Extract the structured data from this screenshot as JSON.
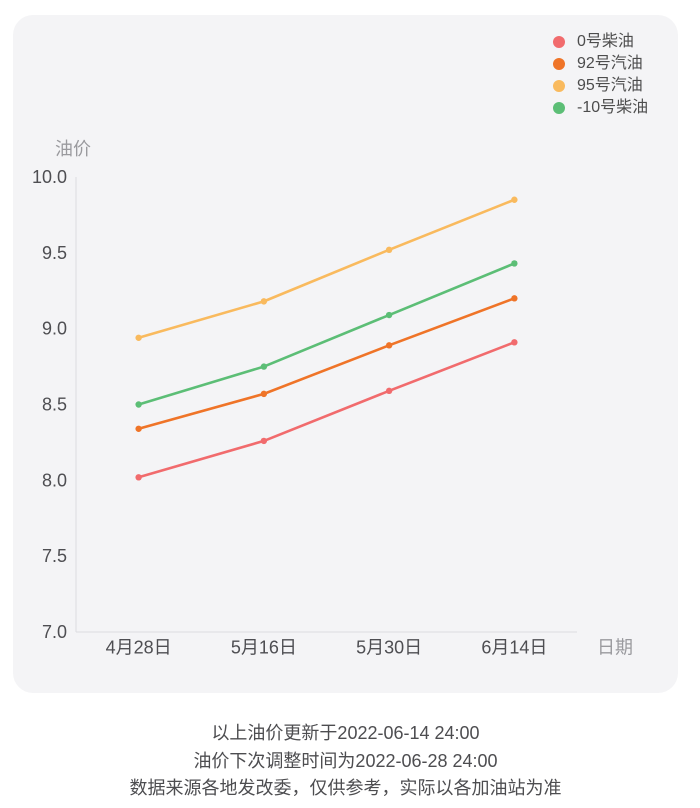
{
  "page": {
    "background": "#ffffff",
    "card_background": "#f4f4f6"
  },
  "legend": {
    "items": [
      {
        "label": "0号柴油",
        "color": "#f16b6d"
      },
      {
        "label": "92号汽油",
        "color": "#ef7428"
      },
      {
        "label": "95号汽油",
        "color": "#f9ba5e"
      },
      {
        "label": "-10号柴油",
        "color": "#5cbe76"
      }
    ]
  },
  "chart_data": {
    "type": "line",
    "title": "",
    "x_axis_name": "日期",
    "y_axis_name": "油价",
    "categories": [
      "4月28日",
      "5月16日",
      "5月30日",
      "6月14日"
    ],
    "series": [
      {
        "name": "0号柴油",
        "color": "#f16b6d",
        "values": [
          8.02,
          8.26,
          8.59,
          8.91
        ]
      },
      {
        "name": "92号汽油",
        "color": "#ef7428",
        "values": [
          8.34,
          8.57,
          8.89,
          9.2
        ]
      },
      {
        "name": "95号汽油",
        "color": "#f9ba5e",
        "values": [
          8.94,
          9.18,
          9.52,
          9.85
        ]
      },
      {
        "name": "-10号柴油",
        "color": "#5cbe76",
        "values": [
          8.5,
          8.75,
          9.09,
          9.43
        ]
      }
    ],
    "ylim": [
      7.0,
      10.0
    ],
    "y_ticks": [
      7.0,
      7.5,
      8.0,
      8.5,
      9.0,
      9.5,
      10.0
    ],
    "grid": false,
    "legend_position": "top-right",
    "axis_line_color": "#dcdce0",
    "tick_label_color": "#4e4e52",
    "axis_name_color": "#9a9a9e"
  },
  "footer": {
    "lines": [
      "以上油价更新于2022-06-14 24:00",
      "油价下次调整时间为2022-06-28 24:00",
      "数据来源各地发改委，仅供参考，实际以各加油站为准"
    ]
  }
}
